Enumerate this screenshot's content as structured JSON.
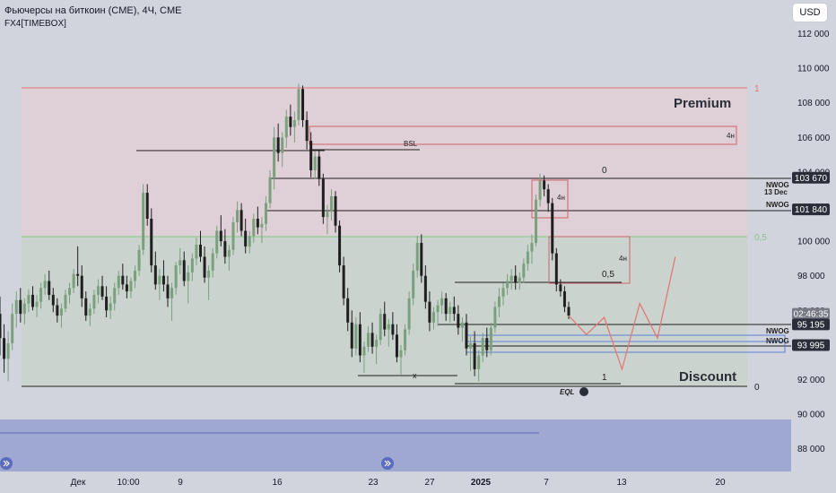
{
  "header": {
    "title": "Фьючерсы на биткоин (CME), 4Ч, CME",
    "indicator": "FX4[TIMEBOX]",
    "currency_button": "USD"
  },
  "chart_data": {
    "type": "candlestick",
    "title": "Фьючерсы на биткоин (CME), 4Ч, CME",
    "y_axis": {
      "ticks": [
        "112 000",
        "110 000",
        "108 000",
        "106 000",
        "104 000",
        "102 000",
        "100 000",
        "98 000",
        "96 000",
        "94 000",
        "92 000",
        "90 000",
        "88 000"
      ],
      "ylim": [
        86800,
        113600
      ]
    },
    "x_axis": {
      "ticks": [
        "Дек",
        "10:00",
        "9",
        "16",
        "23",
        "27",
        "2025",
        "7",
        "13",
        "20"
      ]
    },
    "price_tags": [
      {
        "label": "103 670",
        "value": 103670,
        "style": "dark"
      },
      {
        "label": "101 840",
        "value": 101840,
        "style": "dark"
      },
      {
        "label": "02:46:35",
        "value": 95800,
        "style": "gray"
      },
      {
        "label": "95 195",
        "value": 95195,
        "style": "dark"
      },
      {
        "label": "93 995",
        "value": 93995,
        "style": "dark"
      }
    ],
    "annotations": {
      "premium": "Premium",
      "discount": "Discount",
      "bsl": "BSL",
      "eql": "EQL",
      "x_mark": "x",
      "fib_1": "1",
      "fib_05": "0,5",
      "fib_0": "0",
      "label_4h": "4н",
      "nwog_1": "NWOG",
      "nwog_1_date": "13 Dec",
      "nwog_2": "NWOG",
      "nwog_3": "NWOG",
      "nwog_4": "NWOG",
      "small_0": "0",
      "small_05": "0,5",
      "small_1": "1"
    },
    "colors": {
      "background": "#d1d4dc",
      "premium_zone": "#dfcfd6",
      "discount_zone": "#c9d2cc",
      "fib_top_line": "#e57373",
      "fib_mid_line": "#81c784",
      "volume_band": "#9fa8d0",
      "bull": "#7aa07d",
      "bear": "#1f1f1f",
      "projection": "#e57373"
    },
    "candles": [
      [
        95800,
        96800,
        93400,
        94400
      ],
      [
        94400,
        95200,
        92400,
        93200
      ],
      [
        93200,
        94800,
        91900,
        94100
      ],
      [
        94100,
        96400,
        93700,
        95800
      ],
      [
        95800,
        97100,
        95000,
        96600
      ],
      [
        96600,
        97300,
        95300,
        95800
      ],
      [
        95800,
        96700,
        95200,
        96400
      ],
      [
        96400,
        97200,
        95900,
        96900
      ],
      [
        96900,
        97400,
        96000,
        96200
      ],
      [
        96200,
        96900,
        95600,
        96500
      ],
      [
        96500,
        97600,
        96100,
        97300
      ],
      [
        97300,
        98100,
        96900,
        97700
      ],
      [
        97700,
        98300,
        96600,
        96900
      ],
      [
        96900,
        97300,
        95900,
        96300
      ],
      [
        96300,
        96700,
        95300,
        95700
      ],
      [
        95700,
        96400,
        95000,
        96100
      ],
      [
        96100,
        97200,
        95900,
        96900
      ],
      [
        96900,
        97600,
        96400,
        97300
      ],
      [
        97300,
        98400,
        97000,
        98100
      ],
      [
        98100,
        99700,
        97400,
        98000
      ],
      [
        98000,
        98600,
        96200,
        96700
      ],
      [
        96700,
        97100,
        95400,
        95700
      ],
      [
        95700,
        96400,
        95100,
        96100
      ],
      [
        96100,
        97200,
        95800,
        96900
      ],
      [
        96900,
        97800,
        96400,
        97400
      ],
      [
        97400,
        98000,
        96600,
        96800
      ],
      [
        96800,
        97400,
        95600,
        96000
      ],
      [
        96000,
        96800,
        95500,
        96400
      ],
      [
        96400,
        97600,
        96000,
        97300
      ],
      [
        97300,
        98300,
        96900,
        98000
      ],
      [
        98000,
        98700,
        97200,
        97500
      ],
      [
        97500,
        98000,
        96700,
        97100
      ],
      [
        97100,
        97900,
        96700,
        97700
      ],
      [
        97700,
        98600,
        97300,
        98300
      ],
      [
        98300,
        99800,
        98000,
        99500
      ],
      [
        99500,
        103300,
        99200,
        102800
      ],
      [
        102800,
        103300,
        100900,
        101300
      ],
      [
        101300,
        101900,
        98200,
        98600
      ],
      [
        98600,
        99400,
        97200,
        97500
      ],
      [
        97500,
        98400,
        96600,
        98000
      ],
      [
        98000,
        98900,
        97100,
        97500
      ],
      [
        97500,
        98000,
        96200,
        96700
      ],
      [
        96700,
        97600,
        95400,
        97300
      ],
      [
        97300,
        98800,
        96900,
        98600
      ],
      [
        98600,
        99600,
        98100,
        98900
      ],
      [
        98900,
        99400,
        97400,
        97700
      ],
      [
        97700,
        98600,
        96400,
        98200
      ],
      [
        98200,
        99300,
        97700,
        99000
      ],
      [
        99000,
        100200,
        98600,
        99800
      ],
      [
        99800,
        100600,
        98800,
        99100
      ],
      [
        99100,
        99700,
        97600,
        97900
      ],
      [
        97900,
        98600,
        96600,
        98300
      ],
      [
        98300,
        99600,
        97900,
        99300
      ],
      [
        99300,
        100900,
        99000,
        100600
      ],
      [
        100600,
        101500,
        99700,
        100000
      ],
      [
        100000,
        100700,
        98700,
        99100
      ],
      [
        99100,
        99800,
        98300,
        99500
      ],
      [
        99500,
        101400,
        99200,
        101100
      ],
      [
        101100,
        102300,
        100500,
        101800
      ],
      [
        101800,
        102200,
        100300,
        100600
      ],
      [
        100600,
        101300,
        99300,
        99700
      ],
      [
        99700,
        100600,
        99300,
        100300
      ],
      [
        100300,
        101600,
        99900,
        101300
      ],
      [
        101300,
        102000,
        100400,
        100800
      ],
      [
        100800,
        101400,
        99900,
        101000
      ],
      [
        101000,
        102600,
        100600,
        102200
      ],
      [
        102200,
        104100,
        101900,
        103700
      ],
      [
        103700,
        106600,
        103000,
        106000
      ],
      [
        106000,
        106800,
        104600,
        105100
      ],
      [
        105100,
        106300,
        104300,
        106000
      ],
      [
        106000,
        107600,
        105400,
        107200
      ],
      [
        107200,
        107900,
        106100,
        106600
      ],
      [
        106600,
        107500,
        105700,
        107000
      ],
      [
        107000,
        109100,
        106700,
        108800
      ],
      [
        108800,
        109000,
        106600,
        107000
      ],
      [
        107000,
        107500,
        105300,
        105800
      ],
      [
        105800,
        106300,
        103700,
        104100
      ],
      [
        104100,
        105200,
        103600,
        104900
      ],
      [
        104900,
        105300,
        103200,
        103600
      ],
      [
        103600,
        103900,
        101000,
        101400
      ],
      [
        101400,
        102100,
        100400,
        101700
      ],
      [
        101700,
        103000,
        101200,
        102600
      ],
      [
        102600,
        102900,
        100500,
        100900
      ],
      [
        100900,
        101200,
        98200,
        98600
      ],
      [
        98600,
        99100,
        96300,
        96700
      ],
      [
        96700,
        97300,
        94800,
        95300
      ],
      [
        95300,
        96000,
        93300,
        93800
      ],
      [
        93800,
        95600,
        93400,
        95200
      ],
      [
        95200,
        95900,
        93000,
        93400
      ],
      [
        93400,
        94200,
        92400,
        93900
      ],
      [
        93900,
        95100,
        93600,
        94700
      ],
      [
        94700,
        95300,
        93500,
        93900
      ],
      [
        93900,
        94600,
        92900,
        94300
      ],
      [
        94300,
        96100,
        94000,
        95800
      ],
      [
        95800,
        96500,
        94500,
        94900
      ],
      [
        94900,
        95500,
        93900,
        95200
      ],
      [
        95200,
        95900,
        94300,
        94600
      ],
      [
        94600,
        95200,
        93000,
        93300
      ],
      [
        93300,
        94000,
        92300,
        93700
      ],
      [
        93700,
        95200,
        93400,
        94900
      ],
      [
        94900,
        97100,
        94600,
        96700
      ],
      [
        96700,
        98700,
        96300,
        98300
      ],
      [
        98300,
        100300,
        97900,
        99900
      ],
      [
        99900,
        100400,
        97600,
        98000
      ],
      [
        98000,
        98600,
        96100,
        96500
      ],
      [
        96500,
        97100,
        94800,
        95300
      ],
      [
        95300,
        96200,
        94900,
        95900
      ],
      [
        95900,
        96600,
        95100,
        96300
      ],
      [
        96300,
        97100,
        95800,
        96700
      ],
      [
        96700,
        97000,
        95400,
        95800
      ],
      [
        95800,
        96500,
        95300,
        96200
      ],
      [
        96200,
        96800,
        95400,
        95800
      ],
      [
        95800,
        96300,
        94600,
        95000
      ],
      [
        95000,
        95600,
        94200,
        95300
      ],
      [
        95300,
        95800,
        93400,
        93800
      ],
      [
        93800,
        94500,
        92500,
        94100
      ],
      [
        94100,
        94800,
        92200,
        92600
      ],
      [
        92600,
        93700,
        91900,
        93400
      ],
      [
        93400,
        94700,
        93000,
        94400
      ],
      [
        94400,
        95000,
        93300,
        93700
      ],
      [
        93700,
        95300,
        93400,
        95000
      ],
      [
        95000,
        96500,
        94700,
        96200
      ],
      [
        96200,
        97300,
        95600,
        96800
      ],
      [
        96800,
        97600,
        96300,
        97300
      ],
      [
        97300,
        98100,
        96900,
        97700
      ],
      [
        97700,
        98400,
        97200,
        98000
      ],
      [
        98000,
        98600,
        97200,
        97600
      ],
      [
        97600,
        98200,
        97200,
        97900
      ],
      [
        97900,
        99000,
        97600,
        98700
      ],
      [
        98700,
        99800,
        98300,
        99400
      ],
      [
        99400,
        100400,
        98700,
        99900
      ],
      [
        99900,
        102700,
        99700,
        102400
      ],
      [
        102400,
        103900,
        102000,
        103500
      ],
      [
        103500,
        103800,
        102600,
        103000
      ],
      [
        103000,
        103300,
        101700,
        102200
      ],
      [
        102200,
        102500,
        98900,
        99300
      ],
      [
        99300,
        99600,
        97100,
        97500
      ],
      [
        97500,
        97800,
        96800,
        97100
      ],
      [
        97100,
        97400,
        95900,
        96200
      ],
      [
        96200,
        96500,
        95500,
        95700
      ]
    ],
    "projection": [
      [
        0,
        95700
      ],
      [
        3,
        94600
      ],
      [
        6,
        95600
      ],
      [
        9,
        92600
      ],
      [
        12,
        96400
      ],
      [
        15,
        94400
      ],
      [
        18,
        99100
      ]
    ]
  }
}
